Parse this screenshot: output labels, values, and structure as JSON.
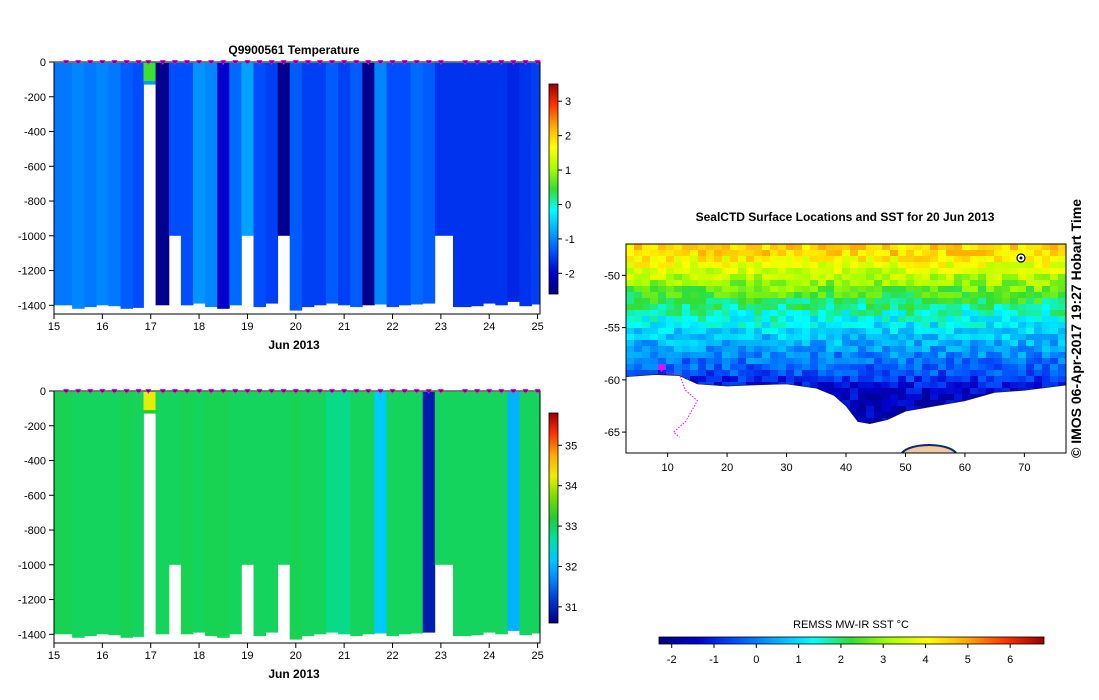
{
  "colors": {
    "background": "#ffffff",
    "profile_marker": "#ff00ff",
    "land": "#ffffff",
    "ice_shelf": "#f2c8a0",
    "temperature_scale": [
      "#000080",
      "#0000cd",
      "#0050ff",
      "#00a8ff",
      "#00ffff",
      "#33dd33",
      "#aaff00",
      "#ffff00",
      "#ffaa00",
      "#ff3300",
      "#990000"
    ],
    "salinity_scale": [
      "#000080",
      "#0030cc",
      "#0080ff",
      "#00c8ff",
      "#00e0a0",
      "#22cc33",
      "#77dd00",
      "#eeee00",
      "#ffaa00",
      "#ff3300",
      "#990000"
    ]
  },
  "chart_data": [
    {
      "id": "temperature-section",
      "type": "heatmap",
      "title": "Q9900561  Temperature",
      "xlabel": "Jun 2013",
      "ylabel": "",
      "xlim": [
        15,
        25.05
      ],
      "ylim": [
        -1450,
        0
      ],
      "xticks": [
        "15",
        "16",
        "17",
        "18",
        "19",
        "20",
        "21",
        "22",
        "23",
        "24",
        "25"
      ],
      "yticks": [
        "0",
        "-200",
        "-400",
        "-600",
        "-800",
        "-1000",
        "-1200",
        "-1400"
      ],
      "colorbar": {
        "min": -2.6,
        "max": 3.5,
        "ticks": [
          "3",
          "2",
          "1",
          "0",
          "-1",
          "-2"
        ]
      },
      "profile_dates": [
        15.25,
        15.5,
        15.75,
        16.0,
        16.25,
        16.5,
        16.75,
        16.95,
        17.25,
        17.5,
        17.75,
        18.0,
        18.25,
        18.5,
        18.75,
        19.0,
        19.25,
        19.5,
        19.75,
        20.0,
        20.25,
        20.5,
        20.75,
        21.0,
        21.25,
        21.5,
        21.75,
        22.0,
        22.25,
        22.5,
        22.75,
        23.0,
        23.5,
        23.75,
        24.0,
        24.25,
        24.5,
        24.75,
        25.0
      ],
      "profile_depths": [
        1400,
        1420,
        1410,
        1400,
        1405,
        1420,
        1415,
        130,
        1400,
        1000,
        1400,
        1390,
        1410,
        1420,
        1400,
        1000,
        1410,
        1390,
        1000,
        1430,
        1410,
        1400,
        1390,
        1400,
        1410,
        1400,
        1395,
        1410,
        1400,
        1395,
        1390,
        1000,
        1410,
        1405,
        1390,
        1400,
        1380,
        1405,
        1395
      ],
      "profile_values": [
        -1.1,
        -1.0,
        -1.1,
        -1.0,
        -1.1,
        -1.3,
        -1.4,
        -0.9,
        -2.5,
        -1.4,
        -1.4,
        -0.9,
        -1.0,
        -2.0,
        -1.2,
        -0.8,
        -1.4,
        -1.5,
        -2.5,
        -1.3,
        -1.5,
        -1.5,
        -1.3,
        -1.5,
        -1.3,
        -2.5,
        -1.0,
        -1.4,
        -1.4,
        -1.2,
        -1.3,
        -1.6,
        -1.6,
        -1.6,
        -1.6,
        -1.6,
        -1.7,
        -1.6,
        -1.5
      ],
      "surface_value_17": 0.5
    },
    {
      "id": "salinity-section",
      "type": "heatmap",
      "title": "",
      "xlabel": "Jun 2013",
      "ylabel": "",
      "xlim": [
        15,
        25.05
      ],
      "ylim": [
        -1450,
        0
      ],
      "xticks": [
        "15",
        "16",
        "17",
        "18",
        "19",
        "20",
        "21",
        "22",
        "23",
        "24",
        "25"
      ],
      "yticks": [
        "0",
        "-200",
        "-400",
        "-600",
        "-800",
        "-1000",
        "-1200",
        "-1400"
      ],
      "colorbar": {
        "min": 30.6,
        "max": 35.8,
        "ticks": [
          "35",
          "34",
          "33",
          "32",
          "31"
        ]
      },
      "profile_dates": [
        15.25,
        15.5,
        15.75,
        16.0,
        16.25,
        16.5,
        16.75,
        16.95,
        17.25,
        17.5,
        17.75,
        18.0,
        18.25,
        18.5,
        18.75,
        19.0,
        19.25,
        19.5,
        19.75,
        20.0,
        20.25,
        20.5,
        20.75,
        21.0,
        21.25,
        21.5,
        21.75,
        22.0,
        22.25,
        22.5,
        22.75,
        23.0,
        23.5,
        23.75,
        24.0,
        24.25,
        24.5,
        24.75,
        25.0
      ],
      "profile_depths": [
        1400,
        1420,
        1410,
        1400,
        1405,
        1420,
        1415,
        130,
        1400,
        1000,
        1400,
        1390,
        1410,
        1420,
        1400,
        1000,
        1410,
        1390,
        1000,
        1430,
        1410,
        1400,
        1390,
        1400,
        1410,
        1400,
        1395,
        1410,
        1400,
        1395,
        1390,
        1000,
        1410,
        1405,
        1390,
        1400,
        1380,
        1405,
        1395
      ],
      "profile_values": [
        33.05,
        33.0,
        33.0,
        33.0,
        33.0,
        33.05,
        33.0,
        33.2,
        33.0,
        33.0,
        33.05,
        33.0,
        33.05,
        33.05,
        33.0,
        33.0,
        33.0,
        33.0,
        33.0,
        33.05,
        33.0,
        33.0,
        32.8,
        32.8,
        33.0,
        33.0,
        32.2,
        33.0,
        33.0,
        33.0,
        30.9,
        33.0,
        33.0,
        33.0,
        33.0,
        33.0,
        32.0,
        33.0,
        33.0
      ],
      "surface_value_17": 34.2
    },
    {
      "id": "sst-map",
      "type": "heatmap",
      "title": "SealCTD Surface Locations and SST for 20 Jun 2013",
      "xlabel": "",
      "ylabel": "",
      "xlim": [
        3,
        77
      ],
      "ylim": [
        -67,
        -47
      ],
      "xticks": [
        "10",
        "20",
        "30",
        "40",
        "50",
        "60",
        "70"
      ],
      "yticks": [
        "-50",
        "-55",
        "-60",
        "-65"
      ],
      "colorbar": {
        "label": "REMSS MW-IR SST °C",
        "min": -2.3,
        "max": 6.8,
        "ticks": [
          "-2",
          "-1",
          "0",
          "1",
          "2",
          "3",
          "4",
          "5",
          "6"
        ]
      },
      "sst_bands": [
        {
          "lat": -47.5,
          "value": 4.5
        },
        {
          "lat": -50,
          "value": 3.2
        },
        {
          "lat": -53,
          "value": 1.7
        },
        {
          "lat": -56,
          "value": 0.6
        },
        {
          "lat": -59,
          "value": -0.5
        },
        {
          "lat": -61,
          "value": -1.5
        }
      ],
      "seal_track": [
        [
          9,
          -58.8
        ],
        [
          9,
          -59.2
        ],
        [
          12,
          -59.5
        ],
        [
          13,
          -61
        ],
        [
          15,
          -62
        ],
        [
          14,
          -63
        ],
        [
          13,
          -64
        ],
        [
          11,
          -65
        ],
        [
          12,
          -65.5
        ]
      ],
      "antarctic_coast": [
        [
          3,
          -59.7
        ],
        [
          8,
          -59.5
        ],
        [
          12,
          -59.6
        ],
        [
          15,
          -60.4
        ],
        [
          20,
          -60.6
        ],
        [
          24,
          -60.5
        ],
        [
          30,
          -60.4
        ],
        [
          35,
          -60.8
        ],
        [
          38,
          -61.5
        ],
        [
          40,
          -62.5
        ],
        [
          42,
          -64
        ],
        [
          44,
          -64.2
        ],
        [
          47,
          -63.8
        ],
        [
          50,
          -63
        ],
        [
          55,
          -62.5
        ],
        [
          60,
          -62
        ],
        [
          65,
          -61.2
        ],
        [
          70,
          -61
        ],
        [
          77,
          -60.5
        ]
      ]
    }
  ],
  "footer": {
    "map_colorbar_label": "REMSS MW-IR SST °C",
    "credit": "© IMOS 06-Apr-2017 19:27 Hobart Time"
  }
}
